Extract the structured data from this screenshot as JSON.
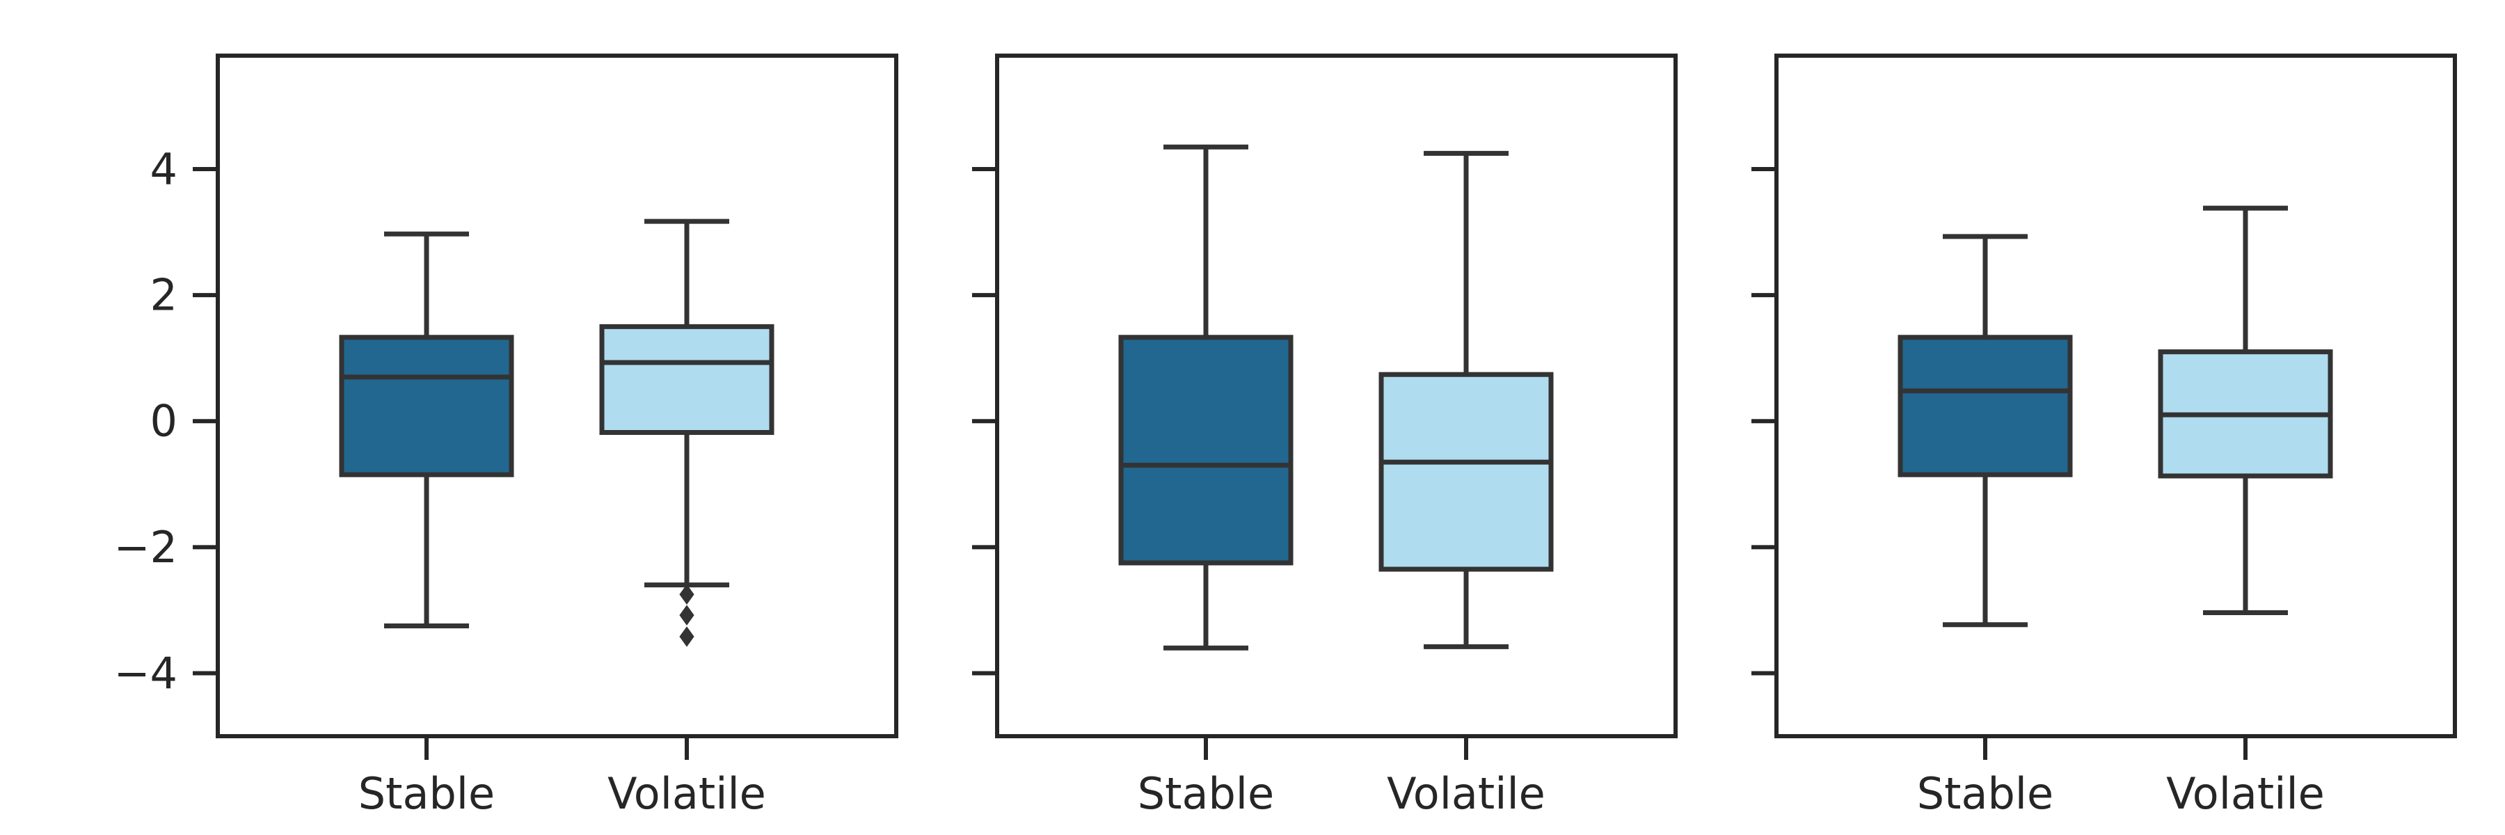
{
  "chart_data": [
    {
      "type": "box",
      "title": "",
      "xlabel": "",
      "ylabel": "",
      "categories": [
        "Stable",
        "Volatile"
      ],
      "ylim": [
        -5,
        5.8
      ],
      "yticks": [
        "4",
        "2",
        "0",
        "−2",
        "−4"
      ],
      "ytick_values": [
        4,
        2,
        0,
        -2,
        -4
      ],
      "show_ytick_labels": true,
      "boxes": [
        {
          "category": "Stable",
          "whisker_low": -3.25,
          "q1": -0.85,
          "median": 0.7,
          "q3": 1.33,
          "whisker_high": 2.97,
          "outliers": [],
          "color": "#21678f"
        },
        {
          "category": "Volatile",
          "whisker_low": -2.6,
          "q1": -0.18,
          "median": 0.93,
          "q3": 1.5,
          "whisker_high": 3.17,
          "outliers": [
            -2.75,
            -3.08,
            -3.42
          ],
          "color": "#afdcef"
        }
      ]
    },
    {
      "type": "box",
      "title": "",
      "xlabel": "",
      "ylabel": "",
      "categories": [
        "Stable",
        "Volatile"
      ],
      "ylim": [
        -5,
        5.8
      ],
      "yticks": [
        "4",
        "2",
        "0",
        "−2",
        "−4"
      ],
      "ytick_values": [
        4,
        2,
        0,
        -2,
        -4
      ],
      "show_ytick_labels": false,
      "boxes": [
        {
          "category": "Stable",
          "whisker_low": -3.6,
          "q1": -2.25,
          "median": -0.7,
          "q3": 1.33,
          "whisker_high": 4.35,
          "outliers": [],
          "color": "#21678f"
        },
        {
          "category": "Volatile",
          "whisker_low": -3.58,
          "q1": -2.35,
          "median": -0.65,
          "q3": 0.74,
          "whisker_high": 4.25,
          "outliers": [],
          "color": "#afdcef"
        }
      ]
    },
    {
      "type": "box",
      "title": "",
      "xlabel": "",
      "ylabel": "",
      "categories": [
        "Stable",
        "Volatile"
      ],
      "ylim": [
        -5,
        5.8
      ],
      "yticks": [
        "4",
        "2",
        "0",
        "−2",
        "−4"
      ],
      "ytick_values": [
        4,
        2,
        0,
        -2,
        -4
      ],
      "show_ytick_labels": false,
      "boxes": [
        {
          "category": "Stable",
          "whisker_low": -3.23,
          "q1": -0.85,
          "median": 0.48,
          "q3": 1.33,
          "whisker_high": 2.93,
          "outliers": [],
          "color": "#21678f"
        },
        {
          "category": "Volatile",
          "whisker_low": -3.04,
          "q1": -0.87,
          "median": 0.1,
          "q3": 1.1,
          "whisker_high": 3.38,
          "outliers": [],
          "color": "#afdcef"
        }
      ]
    }
  ]
}
